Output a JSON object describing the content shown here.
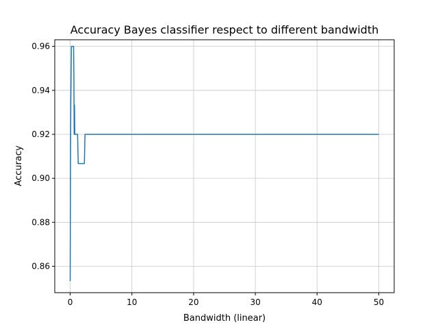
{
  "chart_data": {
    "type": "line",
    "title": "Accuracy Bayes classifier respect to different bandwidth",
    "xlabel": "Bandwidth (linear)",
    "ylabel": "Accuracy",
    "xlim": [
      -2.5,
      52.5
    ],
    "ylim": [
      0.848,
      0.963
    ],
    "xticks": [
      0,
      10,
      20,
      30,
      40,
      50
    ],
    "yticks": [
      0.86,
      0.88,
      0.9,
      0.92,
      0.94,
      0.96
    ],
    "ytick_labels": [
      "0.86",
      "0.88",
      "0.90",
      "0.92",
      "0.94",
      "0.96"
    ],
    "grid": true,
    "line_color": "#1f77b4",
    "series": [
      {
        "x": [
          0.0,
          0.05,
          0.1,
          0.15,
          0.2,
          0.55,
          0.6,
          0.65,
          0.7,
          0.75,
          0.8,
          0.85,
          1.2,
          1.3,
          2.3,
          2.4,
          50.0
        ],
        "y": [
          0.8533,
          0.9067,
          0.9333,
          0.9467,
          0.96,
          0.96,
          0.9467,
          0.92,
          0.9333,
          0.92,
          0.92,
          0.92,
          0.92,
          0.9067,
          0.9067,
          0.92,
          0.92
        ]
      }
    ]
  }
}
